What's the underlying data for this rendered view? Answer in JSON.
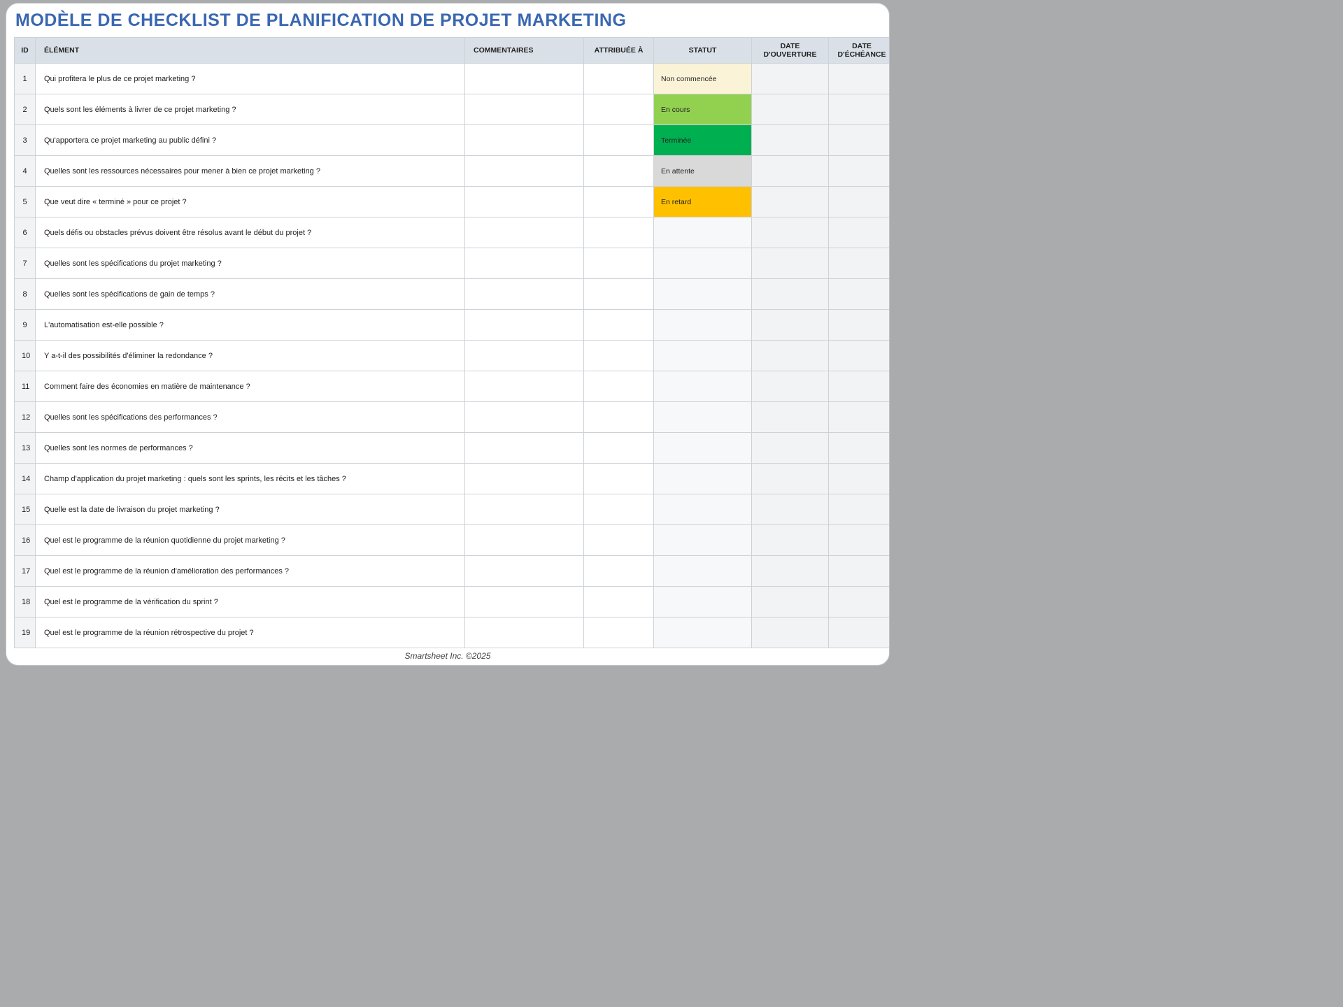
{
  "title": "MODÈLE DE CHECKLIST DE PLANIFICATION DE PROJET MARKETING",
  "footer": "Smartsheet Inc. ©2025",
  "colors": {
    "title": "#3a67b1",
    "header_bg": "#d9e0e8",
    "border": "#cdd2d7",
    "id_bg": "#f2f3f4",
    "alt_bg": "#f6f8fa",
    "page_bg": "#ffffff",
    "outer_bg": "#a9abad"
  },
  "columns": {
    "id": "ID",
    "element": "ÉLÉMENT",
    "comments": "COMMENTAIRES",
    "assigned": "ATTRIBUÉE À",
    "status": "STATUT",
    "opendate": "DATE D'OUVERTURE",
    "duedate": "DATE D'ÉCHÉANCE"
  },
  "status_colors": {
    "Non commencée": "#faf3d7",
    "En cours": "#92d050",
    "Terminée": "#00b050",
    "En attente": "#d9d9d9",
    "En retard": "#ffc000",
    "": "#f6f8fa"
  },
  "rows": [
    {
      "id": "1",
      "element": "Qui profitera le plus de ce projet marketing ?",
      "comments": "",
      "assigned": "",
      "status": "Non commencée",
      "opendate": "",
      "duedate": ""
    },
    {
      "id": "2",
      "element": "Quels sont les éléments à livrer de ce projet marketing ?",
      "comments": "",
      "assigned": "",
      "status": "En cours",
      "opendate": "",
      "duedate": ""
    },
    {
      "id": "3",
      "element": "Qu'apportera ce projet marketing au public défini ?",
      "comments": "",
      "assigned": "",
      "status": "Terminée",
      "opendate": "",
      "duedate": ""
    },
    {
      "id": "4",
      "element": "Quelles sont les ressources nécessaires pour mener à bien ce projet marketing ?",
      "comments": "",
      "assigned": "",
      "status": "En attente",
      "opendate": "",
      "duedate": ""
    },
    {
      "id": "5",
      "element": "Que veut dire « terminé » pour ce projet ?",
      "comments": "",
      "assigned": "",
      "status": "En retard",
      "opendate": "",
      "duedate": ""
    },
    {
      "id": "6",
      "element": "Quels défis ou obstacles prévus doivent être résolus avant le début du projet ?",
      "comments": "",
      "assigned": "",
      "status": "",
      "opendate": "",
      "duedate": ""
    },
    {
      "id": "7",
      "element": "Quelles sont les spécifications du projet marketing ?",
      "comments": "",
      "assigned": "",
      "status": "",
      "opendate": "",
      "duedate": ""
    },
    {
      "id": "8",
      "element": "Quelles sont les spécifications de gain de temps ?",
      "comments": "",
      "assigned": "",
      "status": "",
      "opendate": "",
      "duedate": ""
    },
    {
      "id": "9",
      "element": "L'automatisation est-elle possible ?",
      "comments": "",
      "assigned": "",
      "status": "",
      "opendate": "",
      "duedate": ""
    },
    {
      "id": "10",
      "element": "Y a-t-il des possibilités d'éliminer la redondance ?",
      "comments": "",
      "assigned": "",
      "status": "",
      "opendate": "",
      "duedate": ""
    },
    {
      "id": "11",
      "element": "Comment faire des économies en matière de maintenance ?",
      "comments": "",
      "assigned": "",
      "status": "",
      "opendate": "",
      "duedate": ""
    },
    {
      "id": "12",
      "element": "Quelles sont les spécifications des performances ?",
      "comments": "",
      "assigned": "",
      "status": "",
      "opendate": "",
      "duedate": ""
    },
    {
      "id": "13",
      "element": "Quelles sont les normes de performances ?",
      "comments": "",
      "assigned": "",
      "status": "",
      "opendate": "",
      "duedate": ""
    },
    {
      "id": "14",
      "element": "Champ d'application du projet marketing  : quels sont les sprints, les récits et les tâches ?",
      "comments": "",
      "assigned": "",
      "status": "",
      "opendate": "",
      "duedate": ""
    },
    {
      "id": "15",
      "element": "Quelle est la date de livraison du projet marketing ?",
      "comments": "",
      "assigned": "",
      "status": "",
      "opendate": "",
      "duedate": ""
    },
    {
      "id": "16",
      "element": "Quel est le programme de la réunion quotidienne du projet marketing ?",
      "comments": "",
      "assigned": "",
      "status": "",
      "opendate": "",
      "duedate": ""
    },
    {
      "id": "17",
      "element": "Quel est le programme de la réunion d'amélioration des performances ?",
      "comments": "",
      "assigned": "",
      "status": "",
      "opendate": "",
      "duedate": ""
    },
    {
      "id": "18",
      "element": "Quel est le programme de la vérification du sprint ?",
      "comments": "",
      "assigned": "",
      "status": "",
      "opendate": "",
      "duedate": ""
    },
    {
      "id": "19",
      "element": "Quel est le programme de la réunion rétrospective du projet ?",
      "comments": "",
      "assigned": "",
      "status": "",
      "opendate": "",
      "duedate": ""
    }
  ]
}
